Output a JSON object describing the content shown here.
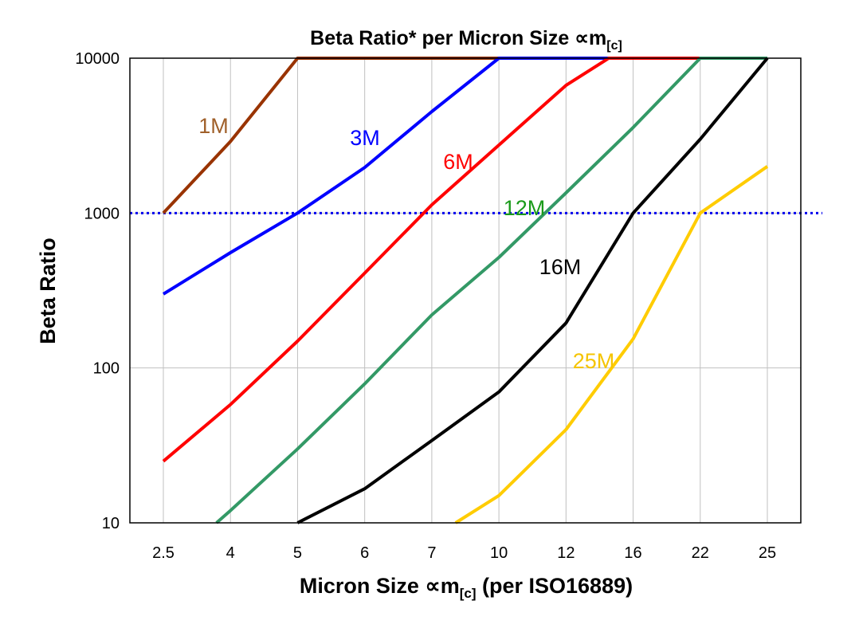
{
  "chart_data": {
    "type": "line",
    "title": "Beta Ratio* per Micron Size ∝m",
    "title_subscript": "[c]",
    "xlabel": "Micron Size ∝m",
    "xlabel_subscript": "[c]",
    "xlabel_suffix": " (per ISO16889)",
    "ylabel": "Beta Ratio",
    "yscale": "log",
    "ylim": [
      10,
      10000
    ],
    "yticks": [
      "10",
      "100",
      "1000",
      "10000"
    ],
    "categories": [
      "2.5",
      "4",
      "5",
      "6",
      "7",
      "10",
      "12",
      "16",
      "22",
      "25"
    ],
    "grid": true,
    "reference_line": {
      "value": 1000,
      "color": "#0000ee",
      "style": "dotted"
    },
    "series": [
      {
        "name": "1M",
        "color": "#993300",
        "label_color": "#a0602a",
        "values": [
          1000,
          2900,
          10000,
          10000,
          10000,
          10000,
          10000,
          10000,
          10000,
          10000
        ]
      },
      {
        "name": "3M",
        "color": "#0000ff",
        "label_color": "#0000ff",
        "values": [
          300,
          555,
          1000,
          1970,
          4520,
          10000,
          10000,
          10000,
          10000,
          10000
        ]
      },
      {
        "name": "6M",
        "color": "#ff0000",
        "label_color": "#ff0000",
        "values": [
          25,
          58,
          149,
          410,
          1130,
          2750,
          6680,
          12600,
          10000,
          10000
        ]
      },
      {
        "name": "12M",
        "color": "#339966",
        "label_color": "#1a9a1a",
        "values": [
          5,
          12,
          30,
          79,
          220,
          517,
          1350,
          3570,
          10000,
          10000
        ]
      },
      {
        "name": "16M",
        "color": "#000000",
        "label_color": "#000000",
        "values": [
          null,
          null,
          10,
          16.6,
          34,
          70,
          195,
          1000,
          3000,
          10000
        ]
      },
      {
        "name": "25M",
        "color": "#ffcc00",
        "label_color": "#f5c400",
        "values": [
          null,
          null,
          null,
          null,
          8,
          15,
          40,
          154,
          1000,
          2000
        ]
      }
    ]
  }
}
